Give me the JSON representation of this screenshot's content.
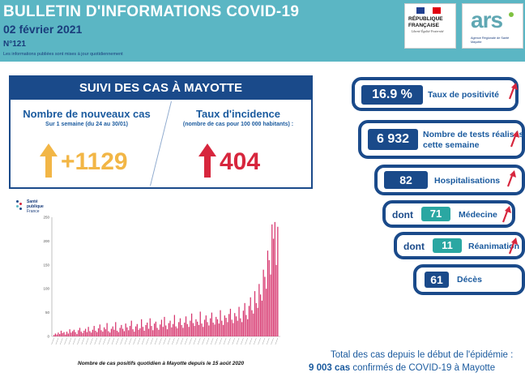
{
  "header": {
    "title": "BULLETIN D'INFORMATIONS COVID-19",
    "date": "02 février 2021",
    "number": "N°121",
    "note": "Les informations publiées sont mises à jour quotidiennement",
    "logo_rf_title": "RÉPUBLIQUE FRANÇAISE",
    "logo_rf_motto": "Liberté Égalité Fraternité",
    "logo_ars_word": "ars",
    "logo_ars_sub": "Agence Régionale de Santé Mayotte"
  },
  "suivi": {
    "title": "SUIVI DES CAS À MAYOTTE",
    "new_cases": {
      "title": "Nombre de nouveaux cas",
      "subtitle": "Sur 1 semaine (du 24 au 30/01)",
      "value": "+1129",
      "arrow_color": "#f2b646"
    },
    "incidence": {
      "title": "Taux d'incidence",
      "subtitle": "(nombre de cas pour 100 000 habitants) :",
      "value": "404",
      "arrow_color": "#d7263d"
    }
  },
  "chart_logo": {
    "line1": "Santé",
    "line2": "publique",
    "line3": "France"
  },
  "chart_caption": "Nombre de cas positifs quotidien à Mayotte depuis le 15 août 2020",
  "chart_data": {
    "type": "bar",
    "title": "",
    "xlabel": "",
    "ylabel": "",
    "ylim": [
      0,
      250
    ],
    "ticks": [
      "0",
      "50",
      "100",
      "150",
      "200",
      "250"
    ],
    "color": "#d6336c",
    "values": [
      3,
      6,
      4,
      8,
      5,
      12,
      7,
      9,
      4,
      10,
      6,
      15,
      8,
      11,
      14,
      9,
      5,
      13,
      18,
      10,
      7,
      12,
      16,
      9,
      20,
      11,
      8,
      14,
      22,
      12,
      9,
      17,
      25,
      13,
      10,
      19,
      15,
      28,
      11,
      8,
      16,
      21,
      14,
      30,
      12,
      9,
      18,
      24,
      16,
      11,
      27,
      19,
      13,
      22,
      33,
      15,
      10,
      21,
      26,
      14,
      17,
      36,
      20,
      12,
      24,
      29,
      16,
      38,
      22,
      13,
      27,
      31,
      18,
      14,
      25,
      35,
      20,
      41,
      23,
      15,
      28,
      33,
      19,
      26,
      45,
      21,
      17,
      30,
      38,
      24,
      18,
      29,
      42,
      26,
      20,
      33,
      48,
      28,
      22,
      36,
      31,
      24,
      52,
      27,
      20,
      35,
      44,
      30,
      23,
      38,
      50,
      29,
      25,
      41,
      36,
      27,
      55,
      33,
      24,
      44,
      39,
      30,
      47,
      58,
      35,
      28,
      49,
      42,
      33,
      62,
      38,
      30,
      54,
      70,
      45,
      36,
      64,
      82,
      55,
      48,
      95,
      70,
      60,
      110,
      88,
      75,
      140,
      125,
      100,
      180,
      160,
      130,
      235,
      205,
      240,
      150,
      230
    ]
  },
  "indicators": [
    {
      "value": "16.9 %",
      "label": "Taux de positivité",
      "trend": "up"
    },
    {
      "value": "6 932",
      "label": "Nombre de tests réalisés cette semaine",
      "trend": "up"
    },
    {
      "value": "82",
      "label": "Hospitalisations",
      "trend": "up"
    },
    {
      "prefix": "dont",
      "value": "71",
      "label": "Médecine",
      "trend": "up"
    },
    {
      "prefix": "dont",
      "value": "11",
      "label": "Réanimation",
      "trend": "up"
    },
    {
      "value": "61",
      "label": "Décès"
    }
  ],
  "colors": {
    "header": "#5bb6c4",
    "navy": "#1a4a8a",
    "teal_box": "#2aa7a2",
    "red_arrow": "#d7263d"
  },
  "total": {
    "line1": "Total des cas depuis le début de l'épidémie :",
    "count": "9 003 cas",
    "line2": "confirmés de COVID-19 à Mayotte"
  }
}
